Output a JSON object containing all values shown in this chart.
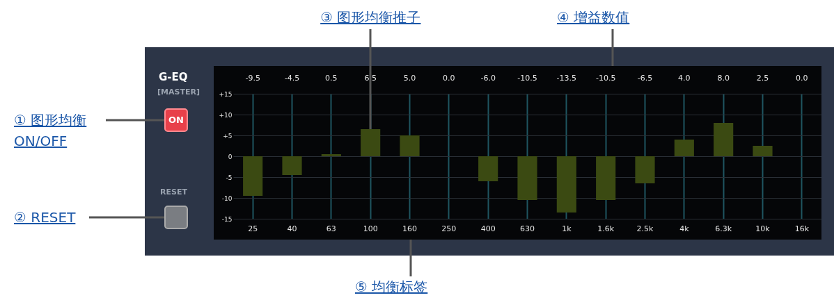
{
  "chart_data": {
    "type": "bar",
    "title": "G-EQ",
    "subtitle": "[MASTER]",
    "categories": [
      "25",
      "40",
      "63",
      "100",
      "160",
      "250",
      "400",
      "630",
      "1k",
      "1.6k",
      "2.5k",
      "4k",
      "6.3k",
      "10k",
      "16k"
    ],
    "values": [
      -9.5,
      -4.5,
      0.5,
      6.5,
      5.0,
      0.0,
      -6.0,
      -10.5,
      -13.5,
      -10.5,
      -6.5,
      4.0,
      8.0,
      2.5,
      0.0
    ],
    "value_labels": [
      "-9.5",
      "-4.5",
      "0.5",
      "6.5",
      "5.0",
      "0.0",
      "-6.0",
      "-10.5",
      "-13.5",
      "-10.5",
      "-6.5",
      "4.0",
      "8.0",
      "2.5",
      "0.0"
    ],
    "color": "#3b4a12",
    "ylim": [
      -15,
      15
    ],
    "yticks": [
      {
        "value": 15,
        "label": "+15"
      },
      {
        "value": 10,
        "label": "+10"
      },
      {
        "value": 5,
        "label": "+5"
      },
      0,
      -5,
      -10,
      -15
    ],
    "grid": true,
    "annotations": [
      "① 图形均衡 ON/OFF",
      "② RESET",
      {
        "text": "③ 图形均衡推子",
        "x": "100",
        "y": 6.5
      },
      "④ 增益数值",
      "⑤ 均衡标签",
      "ON",
      "RESET"
    ]
  }
}
